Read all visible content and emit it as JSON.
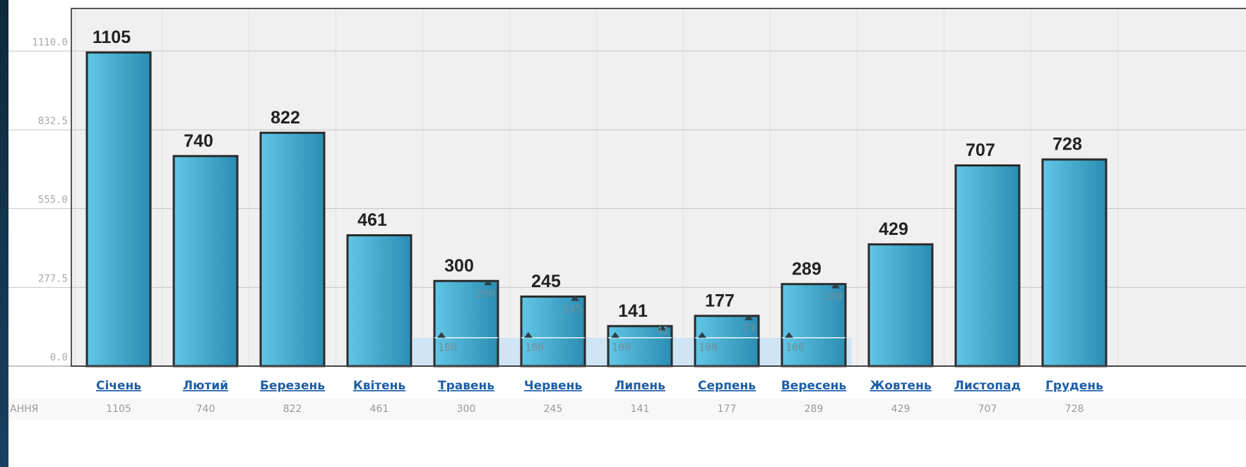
{
  "chart_data": {
    "type": "bar",
    "categories": [
      "Січень",
      "Лютий",
      "Березень",
      "Квітень",
      "Травень",
      "Червень",
      "Липень",
      "Серпень",
      "Вересень",
      "Жовтень",
      "Листопад",
      "Грудень"
    ],
    "values": [
      1105,
      740,
      822,
      461,
      300,
      245,
      141,
      177,
      289,
      429,
      707,
      728
    ],
    "baseline": [
      null,
      null,
      null,
      null,
      100,
      100,
      100,
      100,
      100,
      null,
      null,
      null
    ],
    "excess": [
      null,
      null,
      null,
      null,
      200,
      145,
      41,
      77,
      189,
      null,
      null,
      null
    ],
    "color": "#3eaed3",
    "ylim": [
      0,
      1260
    ],
    "yticks": [
      {
        "value": 0,
        "label": "0.0"
      },
      277.5,
      {
        "value": 555,
        "label": "555.0"
      },
      832.5,
      {
        "value": 1110,
        "label": "1110.0"
      }
    ],
    "grid": true,
    "row_label": "АННЯ"
  }
}
